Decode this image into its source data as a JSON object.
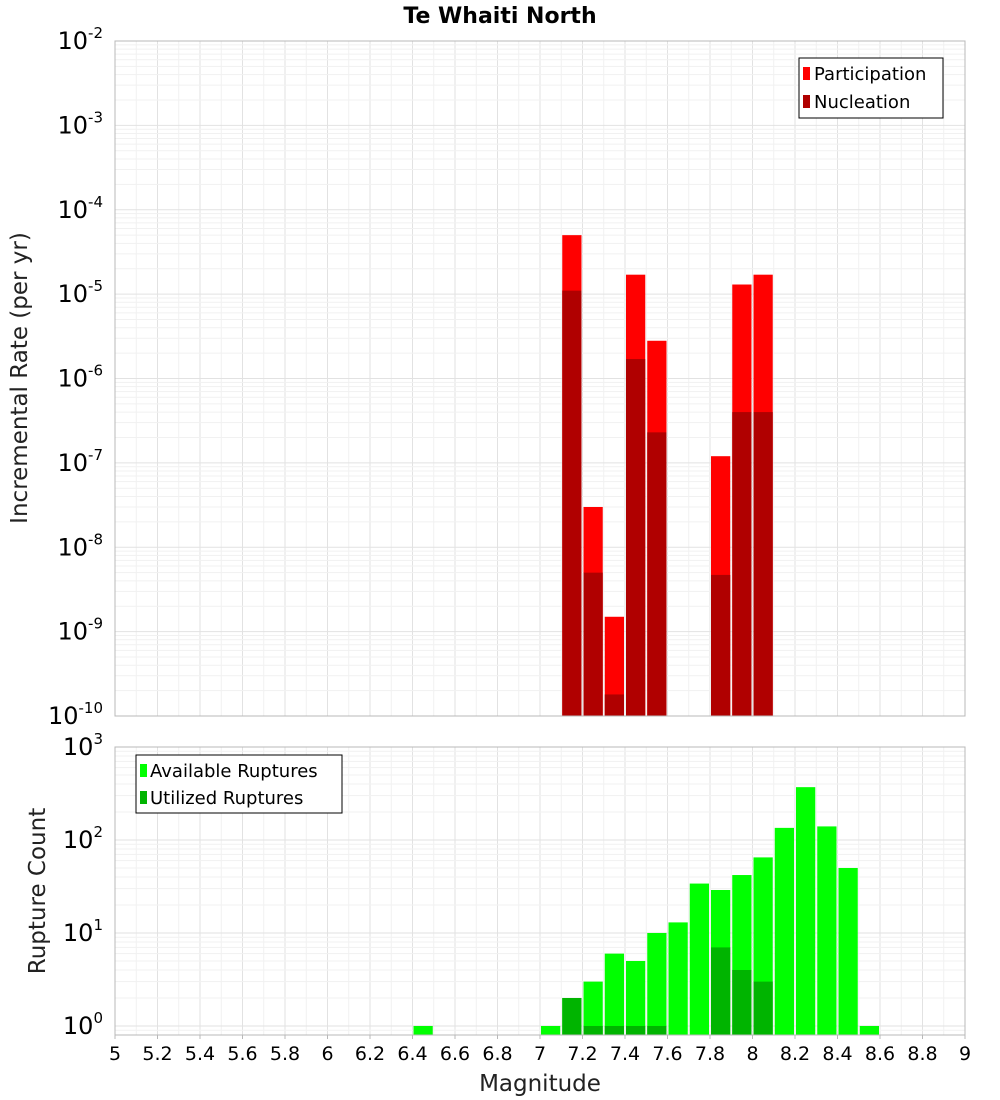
{
  "chart_data": [
    {
      "type": "bar",
      "id": "rates",
      "title": "Te Whaiti North",
      "ylabel": "Incremental Rate (per yr)",
      "xlabel": "",
      "yscale": "log",
      "ylim": [
        1e-10,
        0.01
      ],
      "xlim": [
        5,
        9
      ],
      "bar_width": 0.1,
      "y_ticks": [
        {
          "base": "10",
          "exp": "-10"
        },
        {
          "base": "10",
          "exp": "-9"
        },
        {
          "base": "10",
          "exp": "-8"
        },
        {
          "base": "10",
          "exp": "-7"
        },
        {
          "base": "10",
          "exp": "-6"
        },
        {
          "base": "10",
          "exp": "-5"
        },
        {
          "base": "10",
          "exp": "-4"
        },
        {
          "base": "10",
          "exp": "-3"
        },
        {
          "base": "10",
          "exp": "-2"
        }
      ],
      "legend": {
        "position": "top-right"
      },
      "series": [
        {
          "name": "Participation",
          "color": "#ff0000",
          "x": [
            7.15,
            7.25,
            7.35,
            7.45,
            7.55,
            7.85,
            7.95,
            8.05
          ],
          "values": [
            5e-05,
            3e-08,
            1.5e-09,
            1.7e-05,
            2.8e-06,
            1.2e-07,
            1.3e-05,
            1.7e-05
          ]
        },
        {
          "name": "Nucleation",
          "color": "#b00000",
          "x": [
            7.15,
            7.25,
            7.35,
            7.45,
            7.55,
            7.85,
            7.95,
            8.05
          ],
          "values": [
            1.1e-05,
            5e-09,
            1.8e-10,
            1.7e-06,
            2.3e-07,
            4.7e-09,
            4e-07,
            4e-07
          ]
        }
      ]
    },
    {
      "type": "bar",
      "id": "counts",
      "xlabel": "Magnitude",
      "ylabel": "Rupture Count",
      "yscale": "log",
      "ylim": [
        0.8,
        1000
      ],
      "xlim": [
        5,
        9
      ],
      "bar_width": 0.1,
      "x_ticks": [
        "5",
        "5.2",
        "5.4",
        "5.6",
        "5.8",
        "6",
        "6.2",
        "6.4",
        "6.6",
        "6.8",
        "7",
        "7.2",
        "7.4",
        "7.6",
        "7.8",
        "8",
        "8.2",
        "8.4",
        "8.6",
        "8.8",
        "9"
      ],
      "y_ticks": [
        {
          "base": "10",
          "exp": "0"
        },
        {
          "base": "10",
          "exp": "1"
        },
        {
          "base": "10",
          "exp": "2"
        },
        {
          "base": "10",
          "exp": "3"
        }
      ],
      "legend": {
        "position": "top-left"
      },
      "series": [
        {
          "name": "Available Ruptures",
          "color": "#00ff00",
          "x": [
            6.45,
            7.05,
            7.15,
            7.25,
            7.35,
            7.45,
            7.55,
            7.65,
            7.75,
            7.85,
            7.95,
            8.05,
            8.15,
            8.25,
            8.35,
            8.45,
            8.55
          ],
          "values": [
            1,
            1,
            2,
            3,
            6,
            5,
            10,
            13,
            34,
            29,
            42,
            65,
            135,
            370,
            140,
            50,
            1
          ]
        },
        {
          "name": "Utilized Ruptures",
          "color": "#00b400",
          "x": [
            7.15,
            7.25,
            7.35,
            7.45,
            7.55,
            7.85,
            7.95,
            8.05
          ],
          "values": [
            2,
            1,
            1,
            1,
            1,
            7,
            4,
            3
          ]
        }
      ]
    }
  ]
}
